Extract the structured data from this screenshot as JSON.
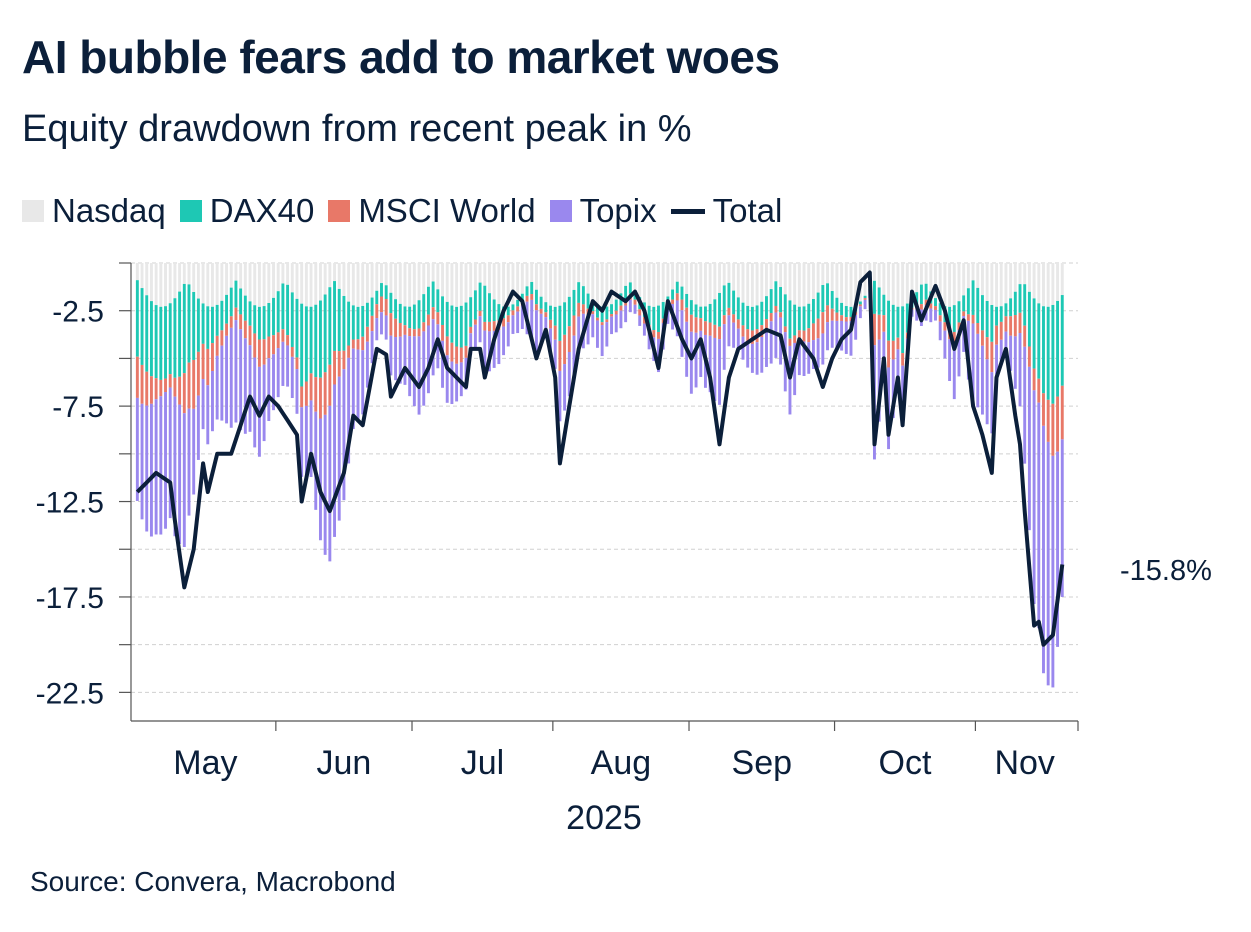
{
  "header": {
    "title": "AI bubble fears add to market woes",
    "subtitle": "Equity drawdown from recent peak in %"
  },
  "legend": [
    {
      "label": "Nasdaq",
      "color": "#e8e8e8",
      "kind": "bar"
    },
    {
      "label": "DAX40",
      "color": "#1ec8b4",
      "kind": "bar"
    },
    {
      "label": "MSCI World",
      "color": "#e87868",
      "kind": "bar"
    },
    {
      "label": "Topix",
      "color": "#9a88ee",
      "kind": "bar"
    },
    {
      "label": "Total",
      "color": "#0b1f3a",
      "kind": "line"
    }
  ],
  "footer": {
    "source": "Source: Convera, Macrobond"
  },
  "chart_data": {
    "type": "bar",
    "stacked": true,
    "title": "AI bubble fears add to market woes",
    "subtitle": "Equity drawdown from recent peak in %",
    "ylim": [
      -24,
      0
    ],
    "yticks": [
      -2.5,
      -7.5,
      -12.5,
      -17.5,
      -22.5
    ],
    "ytick_labels": [
      "-2.5",
      "-7.5",
      "-12.5",
      "-17.5",
      "-22.5"
    ],
    "minor_yticks": [
      0,
      -5,
      -10,
      -15,
      -20
    ],
    "x_months": [
      "May",
      "Jun",
      "Jul",
      "Aug",
      "Sep",
      "Oct",
      "Nov"
    ],
    "x_year_label": "2025",
    "end_label": "-15.8%",
    "grid": true,
    "legend_position": "top-left",
    "series_names": [
      "Nasdaq",
      "DAX40",
      "MSCI World",
      "Topix"
    ],
    "total_series_name": "Total",
    "colors": {
      "Nasdaq": "#e8e8e8",
      "DAX40": "#1ec8b4",
      "MSCI World": "#e87868",
      "Topix": "#9a88ee",
      "Total": "#0b1f3a"
    },
    "n_days": 200,
    "month_starts": [
      0,
      30,
      59,
      89,
      118,
      149,
      179
    ],
    "total_keypoints": [
      [
        0,
        -12.0
      ],
      [
        4,
        -11.0
      ],
      [
        7,
        -11.5
      ],
      [
        8,
        -13.5
      ],
      [
        10,
        -17.0
      ],
      [
        12,
        -15.0
      ],
      [
        14,
        -10.5
      ],
      [
        15,
        -12.0
      ],
      [
        17,
        -10.0
      ],
      [
        20,
        -10.0
      ],
      [
        24,
        -7.0
      ],
      [
        26,
        -8.0
      ],
      [
        28,
        -7.0
      ],
      [
        30,
        -7.5
      ],
      [
        34,
        -9.0
      ],
      [
        35,
        -12.5
      ],
      [
        37,
        -10.0
      ],
      [
        39,
        -12.0
      ],
      [
        41,
        -13.0
      ],
      [
        44,
        -11.0
      ],
      [
        46,
        -8.0
      ],
      [
        48,
        -8.5
      ],
      [
        51,
        -4.5
      ],
      [
        53,
        -4.8
      ],
      [
        54,
        -7.0
      ],
      [
        57,
        -5.5
      ],
      [
        60,
        -6.5
      ],
      [
        62,
        -5.5
      ],
      [
        64,
        -4.0
      ],
      [
        66,
        -5.5
      ],
      [
        68,
        -6.0
      ],
      [
        70,
        -6.5
      ],
      [
        71,
        -4.5
      ],
      [
        73,
        -4.5
      ],
      [
        74,
        -6.0
      ],
      [
        76,
        -4.0
      ],
      [
        78,
        -2.5
      ],
      [
        80,
        -1.5
      ],
      [
        82,
        -2.0
      ],
      [
        85,
        -5.0
      ],
      [
        87,
        -3.5
      ],
      [
        89,
        -6.0
      ],
      [
        90,
        -10.5
      ],
      [
        92,
        -7.5
      ],
      [
        94,
        -4.5
      ],
      [
        97,
        -2.0
      ],
      [
        99,
        -2.5
      ],
      [
        101,
        -1.5
      ],
      [
        104,
        -2.0
      ],
      [
        106,
        -1.5
      ],
      [
        108,
        -2.5
      ],
      [
        111,
        -5.5
      ],
      [
        113,
        -2.0
      ],
      [
        116,
        -4.0
      ],
      [
        118,
        -5.0
      ],
      [
        120,
        -4.0
      ],
      [
        122,
        -6.0
      ],
      [
        124,
        -9.5
      ],
      [
        126,
        -6.0
      ],
      [
        128,
        -4.5
      ],
      [
        131,
        -4.0
      ],
      [
        134,
        -3.5
      ],
      [
        137,
        -3.8
      ],
      [
        139,
        -6.0
      ],
      [
        141,
        -4.0
      ],
      [
        144,
        -5.0
      ],
      [
        146,
        -6.5
      ],
      [
        148,
        -5.0
      ],
      [
        150,
        -4.0
      ],
      [
        152,
        -3.5
      ],
      [
        154,
        -1.0
      ],
      [
        156,
        -0.5
      ],
      [
        157,
        -9.5
      ],
      [
        159,
        -5.0
      ],
      [
        160,
        -9.0
      ],
      [
        162,
        -6.0
      ],
      [
        163,
        -8.5
      ],
      [
        165,
        -1.5
      ],
      [
        167,
        -3.0
      ],
      [
        170,
        -1.2
      ],
      [
        172,
        -2.5
      ],
      [
        174,
        -4.5
      ],
      [
        176,
        -3.0
      ],
      [
        178,
        -7.5
      ],
      [
        180,
        -9.0
      ],
      [
        182,
        -11.0
      ],
      [
        183,
        -6.0
      ],
      [
        185,
        -4.5
      ],
      [
        187,
        -8.0
      ],
      [
        188,
        -9.5
      ],
      [
        189,
        -13.0
      ],
      [
        191,
        -19.0
      ],
      [
        192,
        -18.8
      ],
      [
        193,
        -20.0
      ],
      [
        195,
        -19.5
      ],
      [
        197,
        -15.8
      ]
    ]
  }
}
